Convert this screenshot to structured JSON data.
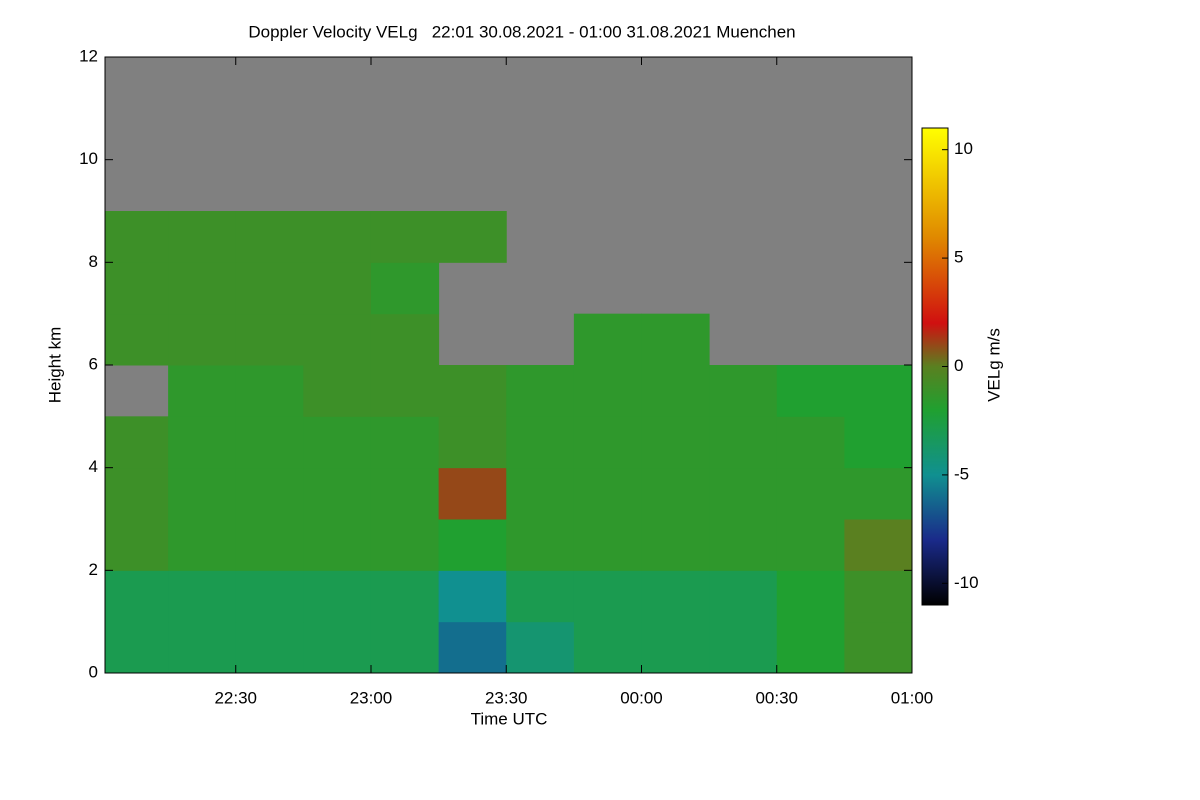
{
  "chart_data": {
    "type": "heatmap",
    "title": "Doppler Velocity VELg   22:01 30.08.2021 - 01:00 31.08.2021 Muenchen",
    "x_label": "Time UTC",
    "y_label": "Height km",
    "colorbar_label": "VELg m/s",
    "x": [
      22.0167,
      22.25,
      22.5,
      22.75,
      23.0,
      23.25,
      23.5,
      23.75,
      24.0,
      24.25,
      24.5,
      24.75,
      25.0
    ],
    "y": [
      0,
      1,
      2,
      3,
      4,
      5,
      6,
      7,
      8,
      9,
      10,
      11,
      12
    ],
    "z": [
      [
        -3,
        -3,
        -3,
        -3,
        -3,
        -6,
        -4,
        -3,
        -3,
        -3,
        -2,
        -1
      ],
      [
        -3,
        -3,
        -3,
        -3,
        -3,
        -5,
        -3,
        -3,
        -3,
        -3,
        -2,
        -1
      ],
      [
        -1,
        -1.5,
        -1.5,
        -1.5,
        -1.5,
        -2,
        -1.5,
        -1.5,
        -1.5,
        -1.5,
        -1.5,
        0
      ],
      [
        -1,
        -1.5,
        -1.5,
        -1.5,
        -1.5,
        1,
        -1.5,
        -1.5,
        -1.5,
        -1.5,
        -1.5,
        -1.5
      ],
      [
        -1,
        -1.5,
        -1.5,
        -1.5,
        -1.5,
        -1,
        -1.5,
        -1.5,
        -1.5,
        -1.5,
        -1.5,
        -2
      ],
      [
        null,
        -1.5,
        -1.5,
        -1,
        -1,
        -1,
        -1.5,
        -1.5,
        -1.5,
        -1.5,
        -2,
        -2
      ],
      [
        -1,
        -1,
        -1,
        -1,
        -1,
        null,
        null,
        -1.5,
        -1.5,
        null,
        null,
        null
      ],
      [
        -1,
        -1,
        -1,
        -1,
        -1.5,
        null,
        null,
        null,
        null,
        null,
        null,
        null
      ],
      [
        -1,
        -1,
        -1,
        -1,
        -1,
        -1,
        null,
        null,
        null,
        null,
        null,
        null
      ],
      [
        null,
        null,
        null,
        null,
        null,
        null,
        null,
        null,
        null,
        null,
        null,
        null
      ],
      [
        null,
        null,
        null,
        null,
        null,
        null,
        null,
        null,
        null,
        null,
        null,
        null
      ],
      [
        null,
        null,
        null,
        null,
        null,
        null,
        null,
        null,
        null,
        null,
        null,
        null
      ]
    ],
    "missing_color": "#808080",
    "colorscale": [
      [
        -11,
        "#000000"
      ],
      [
        -8,
        "#1a2a8a"
      ],
      [
        -5,
        "#109090"
      ],
      [
        -2,
        "#20a030"
      ],
      [
        0,
        "#5a8020"
      ],
      [
        2,
        "#d01010"
      ],
      [
        6,
        "#e08a00"
      ],
      [
        11,
        "#ffff00"
      ]
    ],
    "xlim": [
      22.0167,
      25.0
    ],
    "xticks": [
      {
        "value": 22.5,
        "label": "22:30"
      },
      {
        "value": 23.0,
        "label": "23:00"
      },
      {
        "value": 23.5,
        "label": "23:30"
      },
      {
        "value": 24.0,
        "label": "00:00"
      },
      {
        "value": 24.5,
        "label": "00:30"
      },
      {
        "value": 25.0,
        "label": "01:00"
      }
    ],
    "ylim": [
      0,
      12
    ],
    "yticks": [
      0,
      2,
      4,
      6,
      8,
      10,
      12
    ],
    "zlim": [
      -11,
      11
    ],
    "zticks": [
      -10,
      -5,
      0,
      5,
      10
    ]
  }
}
